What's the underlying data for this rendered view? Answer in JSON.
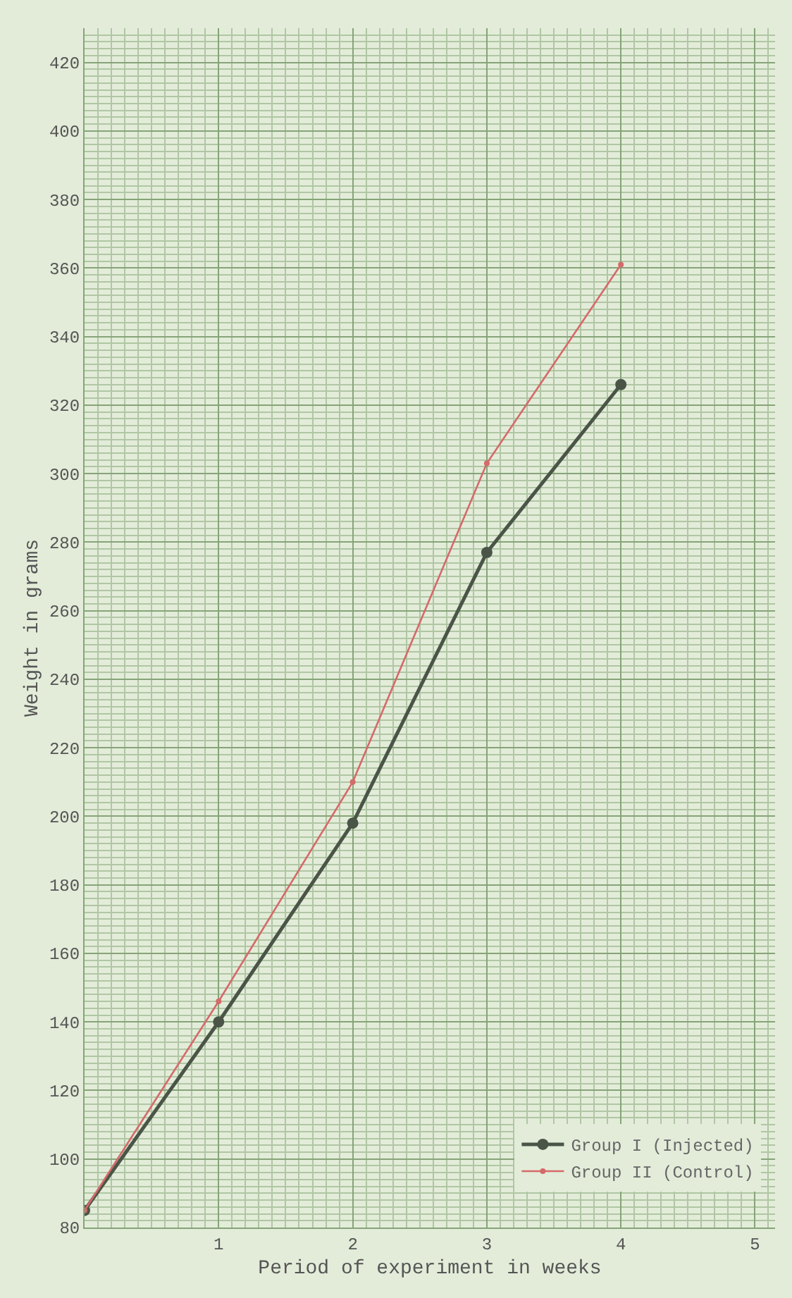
{
  "chart_data": {
    "type": "line",
    "xlabel": "Period of experiment in weeks",
    "ylabel": "Weight in grams",
    "x": [
      0,
      1,
      2,
      3,
      4
    ],
    "series": [
      {
        "name": "Group I (Injected)",
        "color": "#4a5548",
        "values": [
          85,
          140,
          198,
          277,
          326
        ]
      },
      {
        "name": "Group II (Control)",
        "color": "#d46a6a",
        "values": [
          85,
          146,
          210,
          303,
          361
        ]
      }
    ],
    "xlim": [
      0,
      5.15
    ],
    "xticks": [
      1,
      2,
      3,
      4,
      5
    ],
    "ylim": [
      80,
      430
    ],
    "yticks": [
      80,
      100,
      120,
      140,
      160,
      180,
      200,
      220,
      240,
      260,
      280,
      300,
      320,
      340,
      360,
      380,
      400,
      420
    ],
    "grid": true,
    "legend": "bottom right",
    "marker": "circle",
    "line_style": "solid"
  }
}
